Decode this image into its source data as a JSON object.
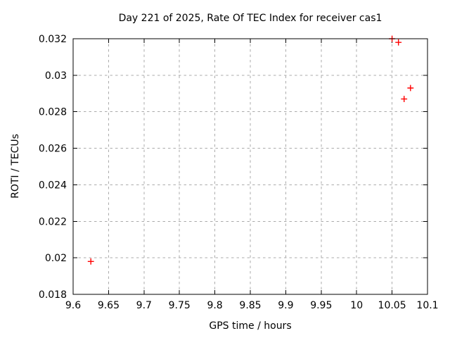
{
  "chart_data": {
    "type": "scatter",
    "title": "Day 221 of 2025, Rate Of TEC Index for receiver cas1",
    "xlabel": "GPS time / hours",
    "ylabel": "ROTI / TECUs",
    "xlim": [
      9.6,
      10.1
    ],
    "ylim": [
      0.018,
      0.032
    ],
    "grid": true,
    "legend": "none",
    "x_ticks": [
      {
        "v": 9.6,
        "label": "9.6"
      },
      {
        "v": 9.65,
        "label": "9.65"
      },
      {
        "v": 9.7,
        "label": "9.7"
      },
      {
        "v": 9.75,
        "label": "9.75"
      },
      {
        "v": 9.8,
        "label": "9.8"
      },
      {
        "v": 9.85,
        "label": "9.85"
      },
      {
        "v": 9.9,
        "label": "9.9"
      },
      {
        "v": 9.95,
        "label": "9.95"
      },
      {
        "v": 10,
        "label": "10"
      },
      {
        "v": 10.05,
        "label": "10.05"
      },
      {
        "v": 10.1,
        "label": "10.1"
      }
    ],
    "y_ticks": [
      {
        "v": 0.018,
        "label": "0.018"
      },
      {
        "v": 0.02,
        "label": "0.02"
      },
      {
        "v": 0.022,
        "label": "0.022"
      },
      {
        "v": 0.024,
        "label": "0.024"
      },
      {
        "v": 0.026,
        "label": "0.026"
      },
      {
        "v": 0.028,
        "label": "0.028"
      },
      {
        "v": 0.03,
        "label": "0.03"
      },
      {
        "v": 0.032,
        "label": "0.032"
      }
    ],
    "series": [
      {
        "name": "ROTI",
        "marker": "plus",
        "color": "#ff0000",
        "points": [
          [
            9.625,
            0.0198
          ],
          [
            10.05,
            0.032
          ],
          [
            10.059,
            0.0318
          ],
          [
            10.067,
            0.0287
          ],
          [
            10.076,
            0.0293
          ]
        ]
      }
    ]
  }
}
